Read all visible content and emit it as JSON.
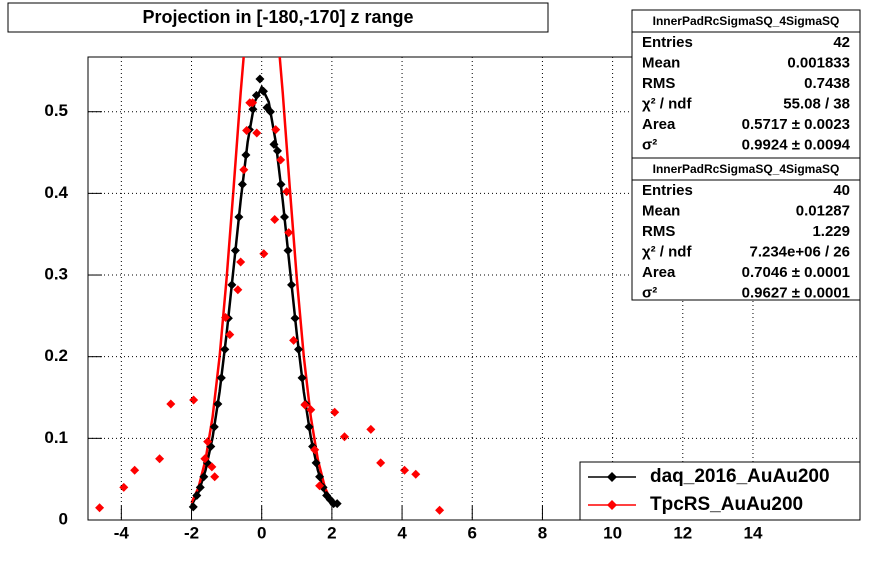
{
  "chart_data": {
    "type": "scatter",
    "title": "Projection in [-180,-170] z range",
    "xlim": [
      -4.95,
      17.05
    ],
    "ylim": [
      0,
      0.567
    ],
    "xticks": [
      -4,
      -2,
      0,
      2,
      4,
      6,
      8,
      10,
      12,
      14
    ],
    "yticks": [
      0,
      0.1,
      0.2,
      0.3,
      0.4,
      0.5
    ],
    "grid": true,
    "legend": "bottom-right",
    "series": [
      {
        "name": "daq_2016_AuAu200",
        "color": "#000000",
        "x": [
          -1.95,
          -1.85,
          -1.75,
          -1.65,
          -1.55,
          -1.45,
          -1.35,
          -1.25,
          -1.15,
          -1.05,
          -0.95,
          -0.85,
          -0.75,
          -0.65,
          -0.55,
          -0.45,
          -0.35,
          -0.25,
          -0.15,
          -0.05,
          0.05,
          0.15,
          0.25,
          0.35,
          0.45,
          0.55,
          0.65,
          0.75,
          0.85,
          0.95,
          1.05,
          1.15,
          1.25,
          1.35,
          1.45,
          1.55,
          1.65,
          1.75,
          1.85,
          1.95,
          2.05,
          2.15
        ],
        "values": [
          0.016,
          0.03,
          0.04,
          0.053,
          0.07,
          0.09,
          0.114,
          0.142,
          0.174,
          0.209,
          0.247,
          0.288,
          0.33,
          0.371,
          0.411,
          0.447,
          0.478,
          0.503,
          0.52,
          0.54,
          0.525,
          0.505,
          0.5,
          0.46,
          0.452,
          0.411,
          0.371,
          0.33,
          0.288,
          0.247,
          0.209,
          0.174,
          0.142,
          0.114,
          0.09,
          0.07,
          0.053,
          0.04,
          0.03,
          0.025,
          0.02,
          0.02
        ]
      },
      {
        "name": "TpcRS_AuAu200",
        "color": "#ff0000",
        "x": [
          -4.62,
          -3.93,
          -3.62,
          -2.91,
          -2.59,
          -1.94,
          -1.62,
          -1.54,
          -1.42,
          -1.34,
          -1.03,
          -0.91,
          -0.68,
          -0.6,
          -0.51,
          -0.43,
          -0.34,
          -0.26,
          -0.14,
          0.06,
          0.37,
          0.4,
          0.54,
          0.71,
          0.77,
          0.91,
          1.23,
          1.4,
          1.51,
          1.65,
          2.08,
          2.36,
          3.11,
          3.39,
          4.07,
          4.39,
          5.07
        ],
        "values": [
          0.015,
          0.04,
          0.061,
          0.075,
          0.142,
          0.147,
          0.075,
          0.096,
          0.065,
          0.053,
          0.248,
          0.227,
          0.282,
          0.316,
          0.429,
          0.477,
          0.511,
          0.511,
          0.474,
          0.326,
          0.368,
          0.478,
          0.441,
          0.402,
          0.352,
          0.22,
          0.141,
          0.135,
          0.086,
          0.042,
          0.132,
          0.102,
          0.111,
          0.07,
          0.061,
          0.056,
          0.012
        ]
      }
    ],
    "fits": [
      {
        "color": "#000000",
        "x": [
          -2.0,
          -1.8,
          -1.6,
          -1.4,
          -1.2,
          -1.0,
          -0.8,
          -0.6,
          -0.4,
          -0.2,
          0,
          0.2,
          0.4,
          0.6,
          0.8,
          1.0,
          1.2,
          1.4,
          1.6,
          1.8,
          2.0
        ],
        "values": [
          0.018,
          0.034,
          0.061,
          0.101,
          0.157,
          0.228,
          0.309,
          0.391,
          0.463,
          0.512,
          0.53,
          0.512,
          0.463,
          0.391,
          0.309,
          0.228,
          0.157,
          0.101,
          0.061,
          0.034,
          0.018
        ]
      },
      {
        "color": "#ff0000",
        "x": [
          -2.0,
          -1.8,
          -1.6,
          -1.4,
          -1.2,
          -1.0,
          -0.8,
          -0.6,
          -0.4,
          -0.2,
          0,
          0.2,
          0.4,
          0.6,
          0.8,
          1.0,
          1.2,
          1.4,
          1.6,
          1.8,
          2.0
        ],
        "values": [
          0.021,
          0.04,
          0.074,
          0.126,
          0.2,
          0.296,
          0.407,
          0.523,
          0.625,
          0.695,
          0.72,
          0.695,
          0.625,
          0.523,
          0.407,
          0.296,
          0.2,
          0.126,
          0.074,
          0.04,
          0.021
        ]
      }
    ],
    "stats": [
      {
        "title": "InnerPadRcSigmaSQ_4SigmaSQ",
        "rows": [
          [
            "Entries",
            "42"
          ],
          [
            "Mean",
            "0.001833"
          ],
          [
            "RMS",
            "0.7438"
          ],
          [
            "χ² / ndf",
            "55.08 / 38"
          ],
          [
            "Area",
            "0.5717 ± 0.0023"
          ],
          [
            "σ²",
            "0.9924 ± 0.0094"
          ]
        ]
      },
      {
        "title": "InnerPadRcSigmaSQ_4SigmaSQ",
        "rows": [
          [
            "Entries",
            "40"
          ],
          [
            "Mean",
            "0.01287"
          ],
          [
            "RMS",
            "1.229"
          ],
          [
            "χ² / ndf",
            "7.234e+06 / 26"
          ],
          [
            "Area",
            "0.7046 ± 0.0001"
          ],
          [
            "σ²",
            "0.9627 ± 0.0001"
          ]
        ]
      }
    ]
  }
}
